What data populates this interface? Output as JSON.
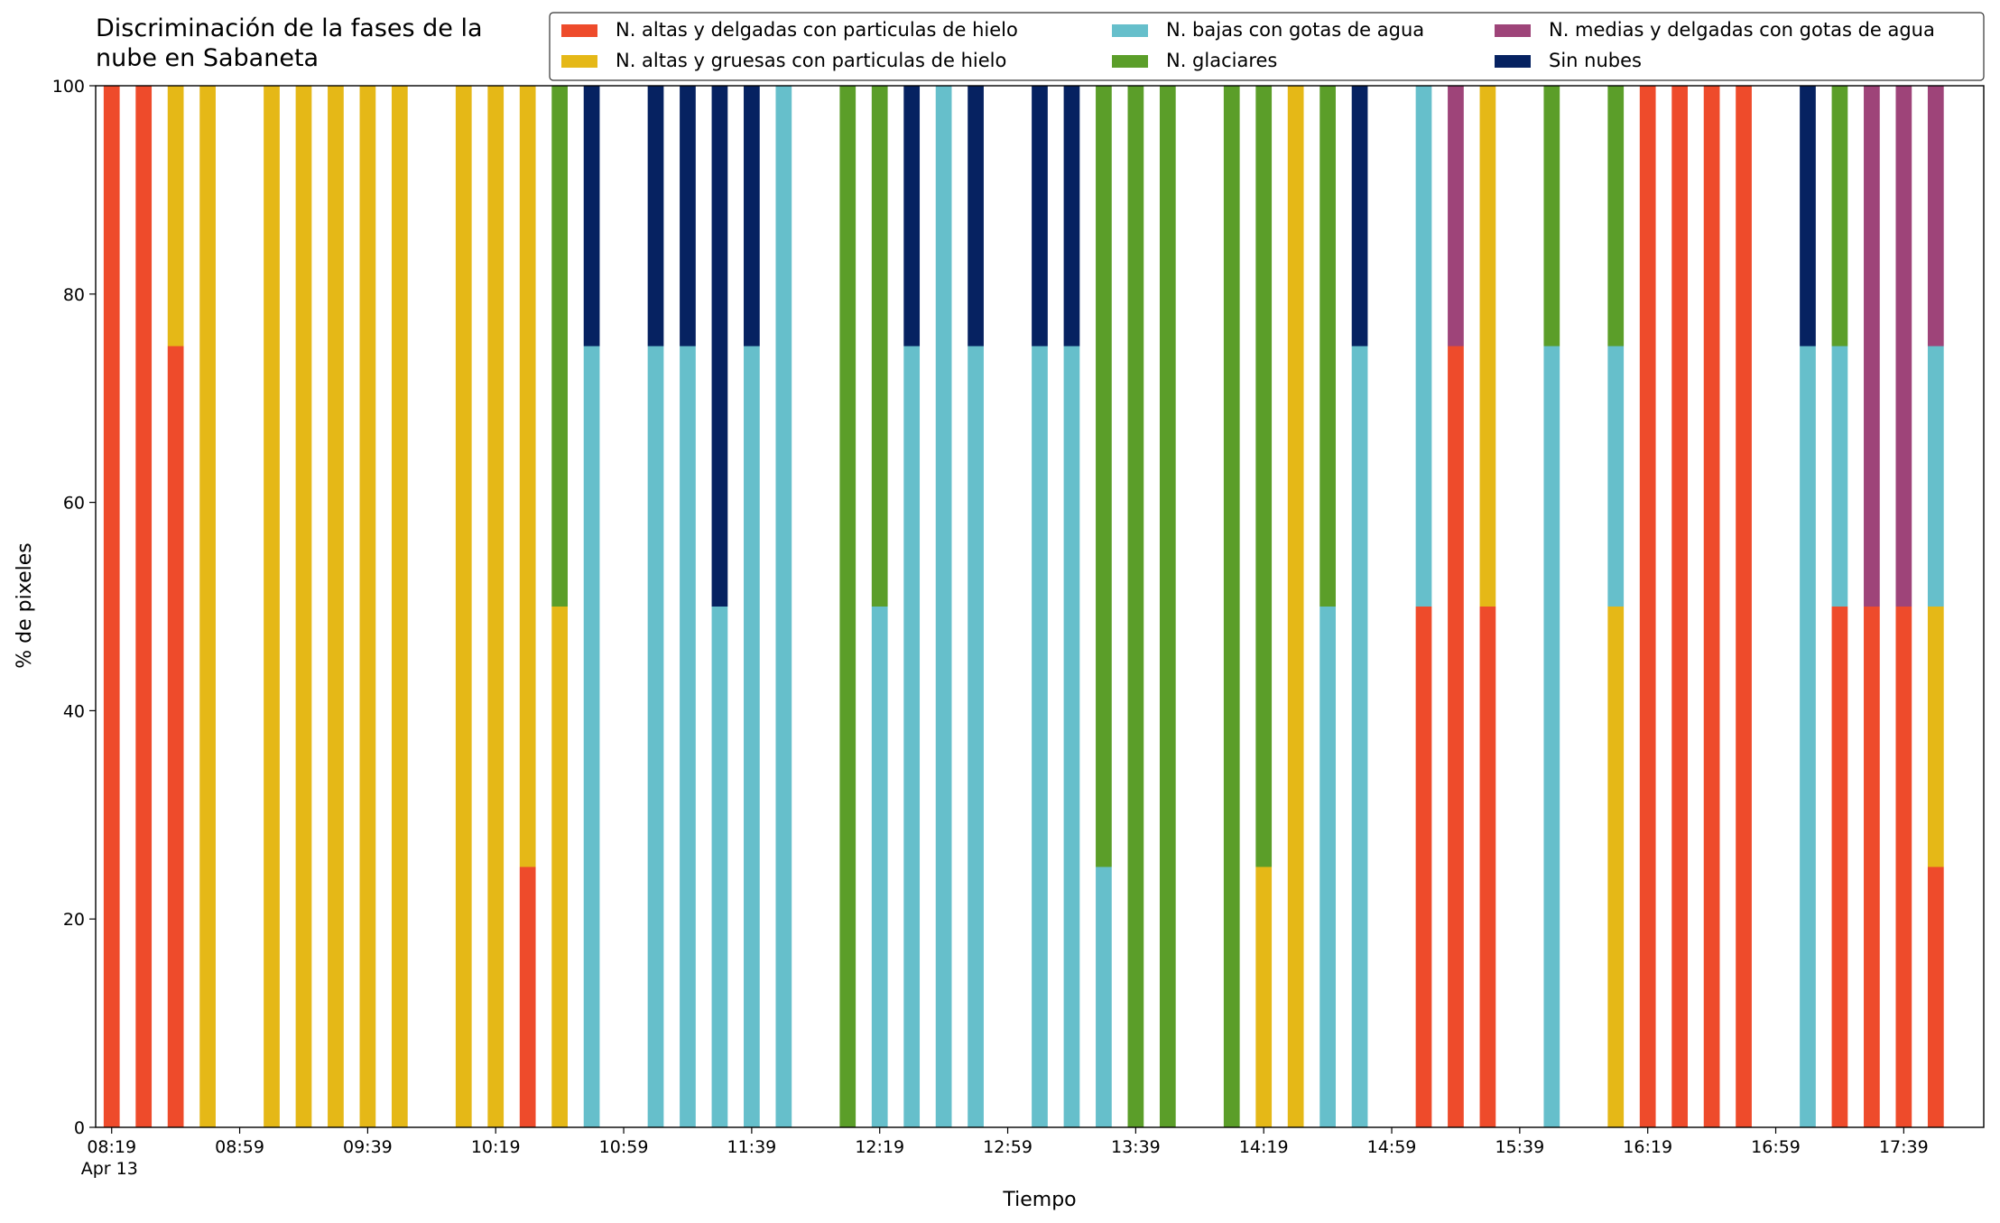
{
  "chart_data": {
    "type": "stacked_bar",
    "title": "Discriminación de la fases de la\nnube en Sabaneta",
    "xlabel": "Tiempo",
    "ylabel": "% de pixeles",
    "x_date_label": "Apr 13",
    "x": [
      "08:19",
      "08:29",
      "08:39",
      "08:49",
      "09:09",
      "09:19",
      "09:29",
      "09:39",
      "09:49",
      "10:09",
      "10:19",
      "10:29",
      "10:39",
      "10:49",
      "11:09",
      "11:19",
      "11:29",
      "11:39",
      "11:49",
      "12:09",
      "12:19",
      "12:29",
      "12:39",
      "12:49",
      "13:09",
      "13:19",
      "13:29",
      "13:39",
      "13:49",
      "14:09",
      "14:19",
      "14:29",
      "14:39",
      "14:49",
      "15:09",
      "15:19",
      "15:29",
      "15:49",
      "16:09",
      "16:19",
      "16:29",
      "16:39",
      "16:49",
      "17:09",
      "17:19",
      "17:29",
      "17:39",
      "17:49"
    ],
    "series": [
      {
        "name": "N. altas y delgadas con particulas de hielo",
        "color": "#ee4b2b",
        "values": [
          100,
          100,
          75,
          0,
          0,
          0,
          0,
          0,
          0,
          0,
          0,
          25,
          0,
          0,
          0,
          0,
          0,
          0,
          0,
          0,
          0,
          0,
          0,
          0,
          0,
          0,
          0,
          0,
          0,
          0,
          0,
          0,
          0,
          0,
          50,
          75,
          50,
          0,
          0,
          100,
          100,
          100,
          100,
          0,
          50,
          50,
          50,
          25
        ]
      },
      {
        "name": "N. altas y gruesas con particulas de hielo",
        "color": "#e5b817",
        "values": [
          0,
          0,
          25,
          100,
          100,
          100,
          100,
          100,
          100,
          100,
          100,
          75,
          50,
          0,
          0,
          0,
          0,
          0,
          0,
          0,
          0,
          0,
          0,
          0,
          0,
          0,
          0,
          0,
          0,
          0,
          25,
          100,
          0,
          0,
          0,
          0,
          50,
          0,
          50,
          0,
          0,
          0,
          0,
          0,
          0,
          0,
          0,
          25
        ]
      },
      {
        "name": "N. bajas con gotas de agua",
        "color": "#66bfcb",
        "values": [
          0,
          0,
          0,
          0,
          0,
          0,
          0,
          0,
          0,
          0,
          0,
          0,
          0,
          75,
          75,
          75,
          50,
          75,
          100,
          0,
          50,
          75,
          100,
          75,
          75,
          75,
          25,
          0,
          0,
          0,
          0,
          0,
          50,
          75,
          50,
          0,
          0,
          75,
          25,
          0,
          0,
          0,
          0,
          75,
          25,
          0,
          0,
          25
        ]
      },
      {
        "name": "N. glaciares",
        "color": "#5b9e29",
        "values": [
          0,
          0,
          0,
          0,
          0,
          0,
          0,
          0,
          0,
          0,
          0,
          0,
          50,
          0,
          0,
          0,
          0,
          0,
          0,
          100,
          50,
          0,
          0,
          0,
          0,
          0,
          75,
          100,
          100,
          100,
          75,
          0,
          50,
          0,
          0,
          0,
          0,
          25,
          25,
          0,
          0,
          0,
          0,
          0,
          25,
          0,
          0,
          0
        ]
      },
      {
        "name": "N. medias y delgadas con gotas de agua",
        "color": "#9e4479",
        "values": [
          0,
          0,
          0,
          0,
          0,
          0,
          0,
          0,
          0,
          0,
          0,
          0,
          0,
          0,
          0,
          0,
          0,
          0,
          0,
          0,
          0,
          0,
          0,
          0,
          0,
          0,
          0,
          0,
          0,
          0,
          0,
          0,
          0,
          0,
          0,
          25,
          0,
          0,
          0,
          0,
          0,
          0,
          0,
          0,
          0,
          50,
          50,
          25
        ]
      },
      {
        "name": "Sin nubes",
        "color": "#062261",
        "values": [
          0,
          0,
          0,
          0,
          0,
          0,
          0,
          0,
          0,
          0,
          0,
          0,
          0,
          25,
          25,
          25,
          50,
          25,
          0,
          0,
          0,
          25,
          0,
          25,
          25,
          25,
          0,
          0,
          0,
          0,
          0,
          0,
          0,
          25,
          0,
          0,
          0,
          0,
          0,
          0,
          0,
          0,
          0,
          25,
          0,
          0,
          0,
          0
        ]
      }
    ],
    "xlim": [
      "08:14",
      "18:04"
    ],
    "xticks": [
      "08:19",
      "08:59",
      "09:39",
      "10:19",
      "10:59",
      "11:39",
      "12:19",
      "12:59",
      "13:39",
      "14:19",
      "14:59",
      "15:39",
      "16:19",
      "16:59",
      "17:39"
    ],
    "ylim": [
      0,
      100
    ],
    "yticks": [
      0,
      20,
      40,
      60,
      80,
      100
    ],
    "legend": "upper right"
  }
}
